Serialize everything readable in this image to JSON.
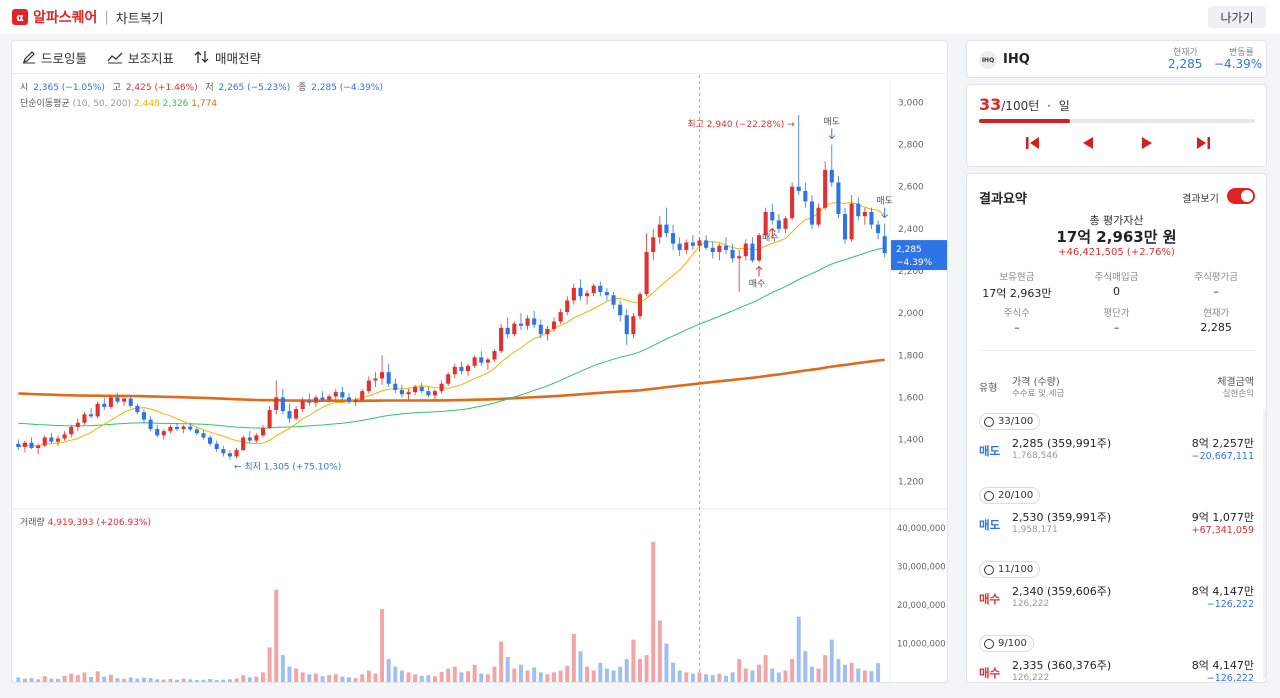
{
  "header": {
    "logo_char": "α",
    "brand": "알파스퀘어",
    "separator": "|",
    "title": "차트복기",
    "exit_label": "나가기"
  },
  "toolbar": {
    "drawing": "드로잉툴",
    "indicator": "보조지표",
    "strategy": "매매전략"
  },
  "ohlc": {
    "open_label": "시",
    "open": "2,365 (−1.05%)",
    "high_label": "고",
    "high": "2,425 (+1.46%)",
    "low_label": "저",
    "low": "2,265 (−5.23%)",
    "close_label": "종",
    "close": "2,285 (−4.39%)"
  },
  "ma_legend": {
    "label": "단순이동평균",
    "params": "(10, 50, 200)",
    "ma10": "2,448",
    "ma50": "2,326",
    "ma200": "1,774"
  },
  "volume_legend": {
    "label": "거래량",
    "value": "4,919,393 (+206.93%)"
  },
  "colors": {
    "up": "#e03131",
    "down": "#2f74e6",
    "ma10": "#f0b400",
    "ma50": "#2fc46b",
    "ma200": "#e06a1b",
    "accent": "#e02424"
  },
  "chart_data": {
    "type": "candlestick",
    "price_axis": {
      "ticks": [
        "3,000",
        "2,800",
        "2,600",
        "2,400",
        "2,200",
        "2,000",
        "1,800",
        "1,600",
        "1,400",
        "1,200"
      ],
      "ylim": [
        1080,
        3130
      ]
    },
    "volume_axis": {
      "ticks": [
        "40,000,000",
        "30,000,000",
        "20,000,000",
        "10,000,000"
      ],
      "ylim": [
        0,
        45000000
      ]
    },
    "current_price_tag": {
      "price": "2,285",
      "change": "−4.39%",
      "value": 2285
    },
    "annotations": {
      "high_label": "최고 2,940 (−22.28%) →",
      "low_label": "← 최저 1,305 (+75.10%)",
      "sell_labels": [
        "매도",
        "매도"
      ],
      "buy_labels": [
        "매수",
        "매수"
      ]
    },
    "candles_ohlc": [
      [
        1380,
        1400,
        1350,
        1365
      ],
      [
        1365,
        1395,
        1340,
        1385
      ],
      [
        1385,
        1410,
        1355,
        1360
      ],
      [
        1360,
        1380,
        1330,
        1372
      ],
      [
        1372,
        1420,
        1365,
        1410
      ],
      [
        1410,
        1430,
        1380,
        1390
      ],
      [
        1390,
        1420,
        1370,
        1405
      ],
      [
        1405,
        1440,
        1395,
        1425
      ],
      [
        1425,
        1470,
        1410,
        1460
      ],
      [
        1460,
        1500,
        1440,
        1480
      ],
      [
        1480,
        1530,
        1470,
        1520
      ],
      [
        1520,
        1550,
        1500,
        1510
      ],
      [
        1510,
        1580,
        1500,
        1570
      ],
      [
        1570,
        1600,
        1540,
        1555
      ],
      [
        1555,
        1610,
        1545,
        1600
      ],
      [
        1600,
        1620,
        1570,
        1580
      ],
      [
        1580,
        1600,
        1560,
        1595
      ],
      [
        1595,
        1610,
        1550,
        1560
      ],
      [
        1560,
        1570,
        1520,
        1530
      ],
      [
        1530,
        1545,
        1480,
        1495
      ],
      [
        1495,
        1510,
        1440,
        1450
      ],
      [
        1450,
        1470,
        1410,
        1420
      ],
      [
        1420,
        1450,
        1400,
        1440
      ],
      [
        1440,
        1470,
        1430,
        1460
      ],
      [
        1460,
        1480,
        1440,
        1450
      ],
      [
        1450,
        1470,
        1430,
        1462
      ],
      [
        1462,
        1480,
        1440,
        1448
      ],
      [
        1448,
        1460,
        1420,
        1430
      ],
      [
        1430,
        1445,
        1400,
        1410
      ],
      [
        1410,
        1420,
        1370,
        1380
      ],
      [
        1380,
        1395,
        1340,
        1355
      ],
      [
        1355,
        1370,
        1320,
        1335
      ],
      [
        1335,
        1350,
        1305,
        1320
      ],
      [
        1320,
        1360,
        1310,
        1350
      ],
      [
        1350,
        1420,
        1345,
        1410
      ],
      [
        1410,
        1440,
        1380,
        1395
      ],
      [
        1395,
        1430,
        1385,
        1420
      ],
      [
        1420,
        1470,
        1410,
        1455
      ],
      [
        1455,
        1560,
        1450,
        1540
      ],
      [
        1540,
        1680,
        1520,
        1600
      ],
      [
        1600,
        1640,
        1520,
        1535
      ],
      [
        1535,
        1570,
        1480,
        1500
      ],
      [
        1500,
        1560,
        1490,
        1545
      ],
      [
        1545,
        1600,
        1530,
        1585
      ],
      [
        1585,
        1620,
        1560,
        1575
      ],
      [
        1575,
        1610,
        1555,
        1600
      ],
      [
        1600,
        1630,
        1580,
        1590
      ],
      [
        1590,
        1615,
        1575,
        1605
      ],
      [
        1605,
        1640,
        1590,
        1625
      ],
      [
        1625,
        1650,
        1590,
        1600
      ],
      [
        1600,
        1620,
        1570,
        1580
      ],
      [
        1580,
        1600,
        1560,
        1590
      ],
      [
        1590,
        1640,
        1580,
        1630
      ],
      [
        1630,
        1700,
        1620,
        1680
      ],
      [
        1680,
        1720,
        1650,
        1690
      ],
      [
        1690,
        1800,
        1660,
        1720
      ],
      [
        1720,
        1760,
        1650,
        1665
      ],
      [
        1665,
        1690,
        1620,
        1635
      ],
      [
        1635,
        1660,
        1600,
        1615
      ],
      [
        1615,
        1640,
        1590,
        1625
      ],
      [
        1625,
        1660,
        1610,
        1650
      ],
      [
        1650,
        1670,
        1620,
        1630
      ],
      [
        1630,
        1650,
        1600,
        1610
      ],
      [
        1610,
        1640,
        1590,
        1630
      ],
      [
        1630,
        1680,
        1620,
        1665
      ],
      [
        1665,
        1720,
        1655,
        1710
      ],
      [
        1710,
        1760,
        1690,
        1745
      ],
      [
        1745,
        1770,
        1710,
        1725
      ],
      [
        1725,
        1760,
        1700,
        1750
      ],
      [
        1750,
        1800,
        1740,
        1790
      ],
      [
        1790,
        1820,
        1750,
        1765
      ],
      [
        1765,
        1790,
        1730,
        1780
      ],
      [
        1780,
        1830,
        1770,
        1820
      ],
      [
        1820,
        1950,
        1810,
        1930
      ],
      [
        1930,
        1980,
        1880,
        1900
      ],
      [
        1900,
        1960,
        1890,
        1950
      ],
      [
        1950,
        2000,
        1920,
        1940
      ],
      [
        1940,
        1990,
        1920,
        1975
      ],
      [
        1975,
        2010,
        1930,
        1945
      ],
      [
        1945,
        1970,
        1880,
        1900
      ],
      [
        1900,
        1940,
        1870,
        1925
      ],
      [
        1925,
        1980,
        1910,
        1960
      ],
      [
        1960,
        2020,
        1950,
        2005
      ],
      [
        2005,
        2080,
        1990,
        2060
      ],
      [
        2060,
        2140,
        2040,
        2120
      ],
      [
        2120,
        2160,
        2060,
        2080
      ],
      [
        2080,
        2110,
        2040,
        2095
      ],
      [
        2095,
        2140,
        2080,
        2130
      ],
      [
        2130,
        2150,
        2080,
        2100
      ],
      [
        2100,
        2120,
        2060,
        2085
      ],
      [
        2085,
        2100,
        2020,
        2040
      ],
      [
        2040,
        2060,
        1960,
        1990
      ],
      [
        1990,
        2020,
        1850,
        1900
      ],
      [
        1900,
        2000,
        1880,
        1985
      ],
      [
        1985,
        2100,
        1970,
        2090
      ],
      [
        2090,
        2380,
        2080,
        2290
      ],
      [
        2290,
        2400,
        2250,
        2360
      ],
      [
        2360,
        2460,
        2330,
        2420
      ],
      [
        2420,
        2500,
        2360,
        2380
      ],
      [
        2380,
        2420,
        2300,
        2330
      ],
      [
        2330,
        2360,
        2270,
        2300
      ],
      [
        2300,
        2350,
        2280,
        2335
      ],
      [
        2335,
        2370,
        2300,
        2320
      ],
      [
        2320,
        2360,
        2290,
        2345
      ],
      [
        2345,
        2370,
        2300,
        2310
      ],
      [
        2310,
        2340,
        2260,
        2290
      ],
      [
        2290,
        2330,
        2250,
        2320
      ],
      [
        2320,
        2360,
        2280,
        2300
      ],
      [
        2300,
        2330,
        2240,
        2260
      ],
      [
        2260,
        2300,
        2100,
        2270
      ],
      [
        2270,
        2350,
        2250,
        2330
      ],
      [
        2330,
        2360,
        2240,
        2250
      ],
      [
        2250,
        2380,
        2240,
        2370
      ],
      [
        2370,
        2500,
        2350,
        2480
      ],
      [
        2480,
        2520,
        2420,
        2440
      ],
      [
        2440,
        2470,
        2380,
        2400
      ],
      [
        2400,
        2460,
        2380,
        2450
      ],
      [
        2450,
        2620,
        2440,
        2600
      ],
      [
        2600,
        2940,
        2560,
        2580
      ],
      [
        2580,
        2620,
        2500,
        2530
      ],
      [
        2530,
        2560,
        2400,
        2420
      ],
      [
        2420,
        2520,
        2410,
        2500
      ],
      [
        2500,
        2720,
        2490,
        2680
      ],
      [
        2680,
        2800,
        2600,
        2620
      ],
      [
        2620,
        2650,
        2450,
        2470
      ],
      [
        2470,
        2500,
        2330,
        2350
      ],
      [
        2350,
        2560,
        2340,
        2520
      ],
      [
        2520,
        2550,
        2440,
        2460
      ],
      [
        2460,
        2500,
        2420,
        2480
      ],
      [
        2480,
        2500,
        2400,
        2420
      ],
      [
        2420,
        2440,
        2350,
        2380
      ],
      [
        2365,
        2425,
        2265,
        2285
      ]
    ],
    "volumes": [
      1.2,
      0.8,
      1.0,
      0.7,
      1.5,
      0.9,
      0.8,
      1.6,
      2.2,
      1.8,
      2.5,
      1.3,
      2.8,
      1.4,
      1.9,
      1.0,
      0.8,
      1.2,
      0.9,
      1.1,
      1.0,
      0.7,
      0.6,
      0.8,
      0.6,
      0.9,
      0.7,
      0.5,
      0.6,
      0.8,
      0.5,
      0.6,
      0.7,
      0.9,
      1.8,
      1.2,
      1.4,
      2.5,
      9.0,
      24.0,
      7.0,
      4.0,
      3.5,
      2.5,
      2.0,
      2.2,
      1.5,
      1.8,
      2.0,
      1.4,
      1.2,
      1.0,
      2.0,
      3.0,
      2.2,
      19.0,
      6.0,
      4.0,
      3.0,
      2.5,
      2.0,
      1.6,
      1.8,
      1.5,
      2.6,
      3.5,
      4.0,
      2.5,
      2.8,
      4.5,
      2.2,
      2.0,
      4.0,
      10.5,
      6.5,
      3.5,
      4.5,
      3.0,
      3.8,
      2.5,
      2.0,
      2.5,
      3.0,
      4.2,
      12.5,
      8.0,
      4.0,
      3.0,
      5.0,
      3.5,
      3.0,
      4.0,
      6.0,
      11.0,
      6.0,
      7.0,
      36.5,
      16.0,
      10.0,
      5.0,
      3.0,
      2.5,
      2.2,
      2.5,
      2.0,
      1.8,
      2.2,
      1.6,
      2.5,
      6.0,
      3.5,
      3.0,
      4.5,
      7.0,
      3.5,
      2.5,
      3.0,
      6.0,
      17.0,
      8.0,
      4.0,
      3.5,
      7.0,
      11.0,
      6.0,
      4.5,
      5.0,
      3.5,
      3.0,
      2.8,
      4.9
    ],
    "volume_units_millions": true,
    "moving_averages": [
      {
        "name": "10",
        "period": 10
      },
      {
        "name": "50",
        "period": 50
      },
      {
        "name": "200",
        "period": 200
      }
    ]
  },
  "stock": {
    "logo_text": "IHQ",
    "name": "IHQ",
    "price_label": "현재가",
    "price": "2,285",
    "change_label": "변동률",
    "change": "−4.39%"
  },
  "turn": {
    "current": "33",
    "total": "/100턴",
    "dot": "·",
    "unit": "일",
    "progress": 0.33
  },
  "result": {
    "title": "결과요약",
    "toggle_label": "결과보기",
    "total_label": "총 평가자산",
    "total_value": "17억 2,963만 원",
    "total_change": "+46,421,505 (+2.76%)",
    "row1": [
      {
        "label": "보유현금",
        "value": "17억 2,963만"
      },
      {
        "label": "주식매입금",
        "value": "0"
      },
      {
        "label": "주식평가금",
        "value": "–"
      }
    ],
    "row2": [
      {
        "label": "주식수",
        "value": "–"
      },
      {
        "label": "평단가",
        "value": "–"
      },
      {
        "label": "현재가",
        "value": "2,285"
      }
    ],
    "headers": {
      "type": "유형",
      "price": "가격 (수량)",
      "fee": "수수료 및 세금",
      "amount": "체결금액",
      "pnl": "실현손익"
    },
    "trades": [
      {
        "turn": "33/100",
        "type": "매도",
        "side": "sell",
        "price": "2,285 (359,991주)",
        "fee": "1,768,546",
        "amount": "8억 2,257만",
        "pnl": "−20,667,111",
        "pnl_sign": "neg"
      },
      {
        "turn": "20/100",
        "type": "매도",
        "side": "sell",
        "price": "2,530 (359,991주)",
        "fee": "1,958,171",
        "amount": "9억 1,077만",
        "pnl": "+67,341,059",
        "pnl_sign": "pos"
      },
      {
        "turn": "11/100",
        "type": "매수",
        "side": "buy",
        "price": "2,340 (359,606주)",
        "fee": "126,222",
        "amount": "8억 4,147만",
        "pnl": "−126,222",
        "pnl_sign": "neg"
      },
      {
        "turn": "9/100",
        "type": "매수",
        "side": "buy",
        "price": "2,335 (360,376주)",
        "fee": "126,222",
        "amount": "8억 4,147만",
        "pnl": "−126,222",
        "pnl_sign": "neg"
      }
    ]
  }
}
